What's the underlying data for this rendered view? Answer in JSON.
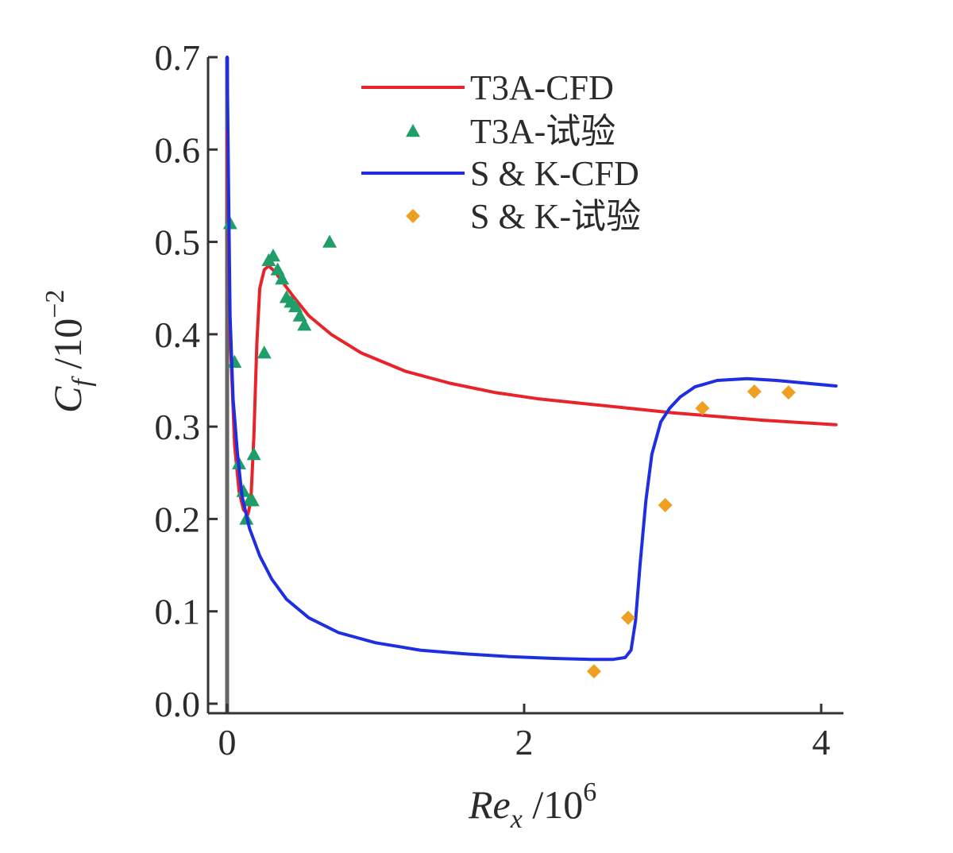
{
  "chart_data": {
    "type": "line",
    "title": "",
    "xlabel": "Re_x / 10^6",
    "ylabel": "C_f / 10^-2",
    "xlabel_parts": {
      "main": "Re",
      "sub": "x",
      "rest": " /10",
      "sup": "6"
    },
    "ylabel_parts": {
      "main": "C",
      "sub": "f",
      "rest": " /10",
      "sup": "−2"
    },
    "xlim": [
      0,
      4.1
    ],
    "ylim": [
      0,
      0.7
    ],
    "xticks": [
      0,
      2,
      4
    ],
    "xtick_labels": [
      "0",
      "2",
      "4"
    ],
    "yticks": [
      0.0,
      0.1,
      0.2,
      0.3,
      0.4,
      0.5,
      0.6,
      0.7
    ],
    "ytick_labels": [
      "0.0",
      "0.1",
      "0.2",
      "0.3",
      "0.4",
      "0.5",
      "0.6",
      "0.7"
    ],
    "grid": false,
    "legend_position": "top-right",
    "series": [
      {
        "name": "T3A-CFD",
        "kind": "line",
        "color": "#e8232a",
        "x": [
          0.0,
          0.02,
          0.05,
          0.08,
          0.11,
          0.14,
          0.16,
          0.18,
          0.2,
          0.22,
          0.25,
          0.28,
          0.32,
          0.38,
          0.45,
          0.55,
          0.7,
          0.9,
          1.2,
          1.5,
          1.8,
          2.1,
          2.4,
          2.7,
          3.0,
          3.3,
          3.6,
          3.9,
          4.1
        ],
        "y": [
          0.62,
          0.4,
          0.28,
          0.23,
          0.21,
          0.205,
          0.22,
          0.29,
          0.39,
          0.45,
          0.47,
          0.474,
          0.468,
          0.455,
          0.44,
          0.42,
          0.4,
          0.38,
          0.36,
          0.347,
          0.337,
          0.33,
          0.325,
          0.32,
          0.315,
          0.311,
          0.307,
          0.304,
          0.302
        ]
      },
      {
        "name": "T3A-试验",
        "kind": "scatter",
        "marker": "triangle",
        "color": "#1f9e6a",
        "x": [
          0.02,
          0.05,
          0.08,
          0.11,
          0.13,
          0.15,
          0.17,
          0.18,
          0.25,
          0.28,
          0.31,
          0.34,
          0.37,
          0.4,
          0.43,
          0.46,
          0.49,
          0.52,
          0.69
        ],
        "y": [
          0.52,
          0.37,
          0.26,
          0.23,
          0.2,
          0.22,
          0.22,
          0.27,
          0.38,
          0.48,
          0.485,
          0.47,
          0.46,
          0.44,
          0.435,
          0.43,
          0.42,
          0.41,
          0.5
        ]
      },
      {
        "name": "S & K-CFD",
        "kind": "line",
        "color": "#1f2fe0",
        "x": [
          0.0,
          0.01,
          0.02,
          0.04,
          0.07,
          0.1,
          0.15,
          0.22,
          0.3,
          0.4,
          0.55,
          0.75,
          1.0,
          1.3,
          1.6,
          1.9,
          2.2,
          2.45,
          2.6,
          2.68,
          2.72,
          2.75,
          2.78,
          2.82,
          2.86,
          2.92,
          2.98,
          3.05,
          3.15,
          3.3,
          3.5,
          3.7,
          3.9,
          4.1
        ],
        "y": [
          0.7,
          0.55,
          0.42,
          0.33,
          0.27,
          0.225,
          0.19,
          0.16,
          0.135,
          0.113,
          0.093,
          0.077,
          0.066,
          0.058,
          0.054,
          0.051,
          0.049,
          0.048,
          0.048,
          0.05,
          0.058,
          0.09,
          0.15,
          0.22,
          0.27,
          0.305,
          0.32,
          0.332,
          0.343,
          0.35,
          0.352,
          0.35,
          0.347,
          0.344
        ]
      },
      {
        "name": "S & K-试验",
        "kind": "scatter",
        "marker": "diamond",
        "color": "#f0a020",
        "x": [
          2.47,
          2.7,
          2.95,
          3.2,
          3.55,
          3.78
        ],
        "y": [
          0.035,
          0.093,
          0.215,
          0.32,
          0.338,
          0.337
        ]
      }
    ],
    "annotations": [
      {
        "kind": "vertical-line",
        "x": 0.0,
        "color": "#666666",
        "note": "gray line at leading edge"
      }
    ]
  }
}
